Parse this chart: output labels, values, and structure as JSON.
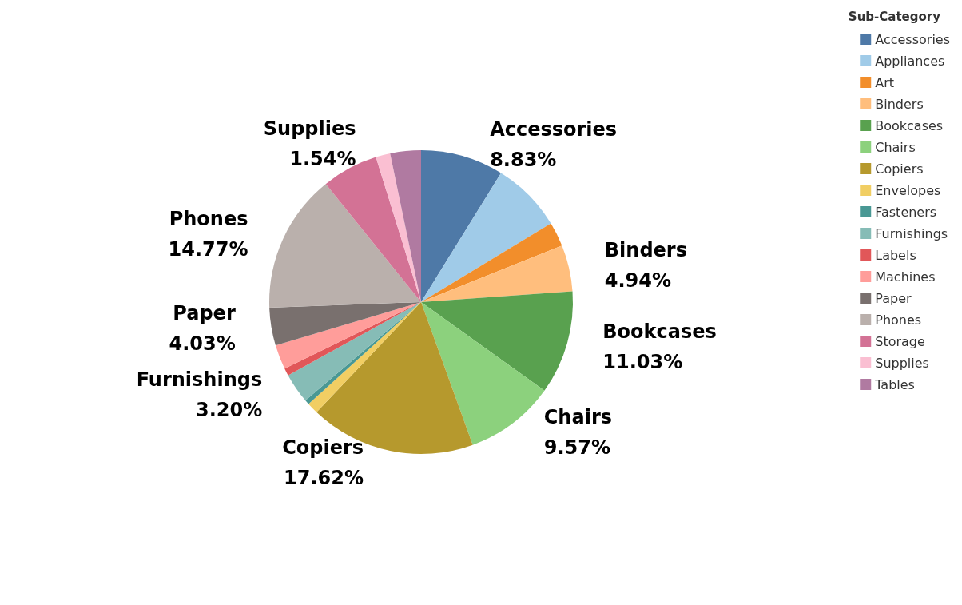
{
  "chart_data": {
    "type": "pie",
    "legend_title": "Sub-Category",
    "legend": "top right",
    "categories": [
      "Accessories",
      "Appliances",
      "Art",
      "Binders",
      "Bookcases",
      "Chairs",
      "Copiers",
      "Envelopes",
      "Fasteners",
      "Furnishings",
      "Labels",
      "Machines",
      "Paper",
      "Phones",
      "Storage",
      "Supplies",
      "Tables"
    ],
    "values": [
      8.83,
      7.5,
      2.6,
      4.94,
      11.03,
      9.57,
      17.62,
      1.2,
      0.5,
      3.2,
      0.8,
      2.6,
      4.03,
      14.77,
      6.0,
      1.54,
      3.27
    ],
    "value_labels": [
      "8.83%",
      null,
      null,
      "4.94%",
      "11.03%",
      "9.57%",
      "17.62%",
      null,
      null,
      "3.20%",
      null,
      null,
      "4.03%",
      "14.77%",
      null,
      "1.54%",
      null
    ],
    "colors": [
      "#4e79a7",
      "#a0cbe8",
      "#f28e2b",
      "#ffbe7d",
      "#59a14f",
      "#8cd17d",
      "#b6992d",
      "#f1ce63",
      "#499894",
      "#86bcb6",
      "#e15759",
      "#ff9d9a",
      "#79706e",
      "#bab0ac",
      "#d37295",
      "#fabfd2",
      "#b07aa1"
    ]
  }
}
